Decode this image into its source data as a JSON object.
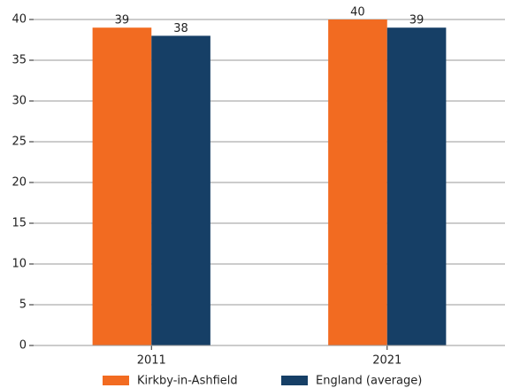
{
  "chart_data": {
    "type": "bar",
    "categories": [
      "2011",
      "2021"
    ],
    "series": [
      {
        "name": "Kirkby-in-Ashfield",
        "color": "#f26b21",
        "values": [
          39,
          40
        ]
      },
      {
        "name": "England (average)",
        "color": "#163f66",
        "values": [
          38,
          39
        ]
      }
    ],
    "ylim": [
      0,
      40
    ],
    "yticks": [
      0,
      5,
      10,
      15,
      20,
      25,
      30,
      35,
      40
    ],
    "grid": true,
    "legend": "bottom"
  }
}
